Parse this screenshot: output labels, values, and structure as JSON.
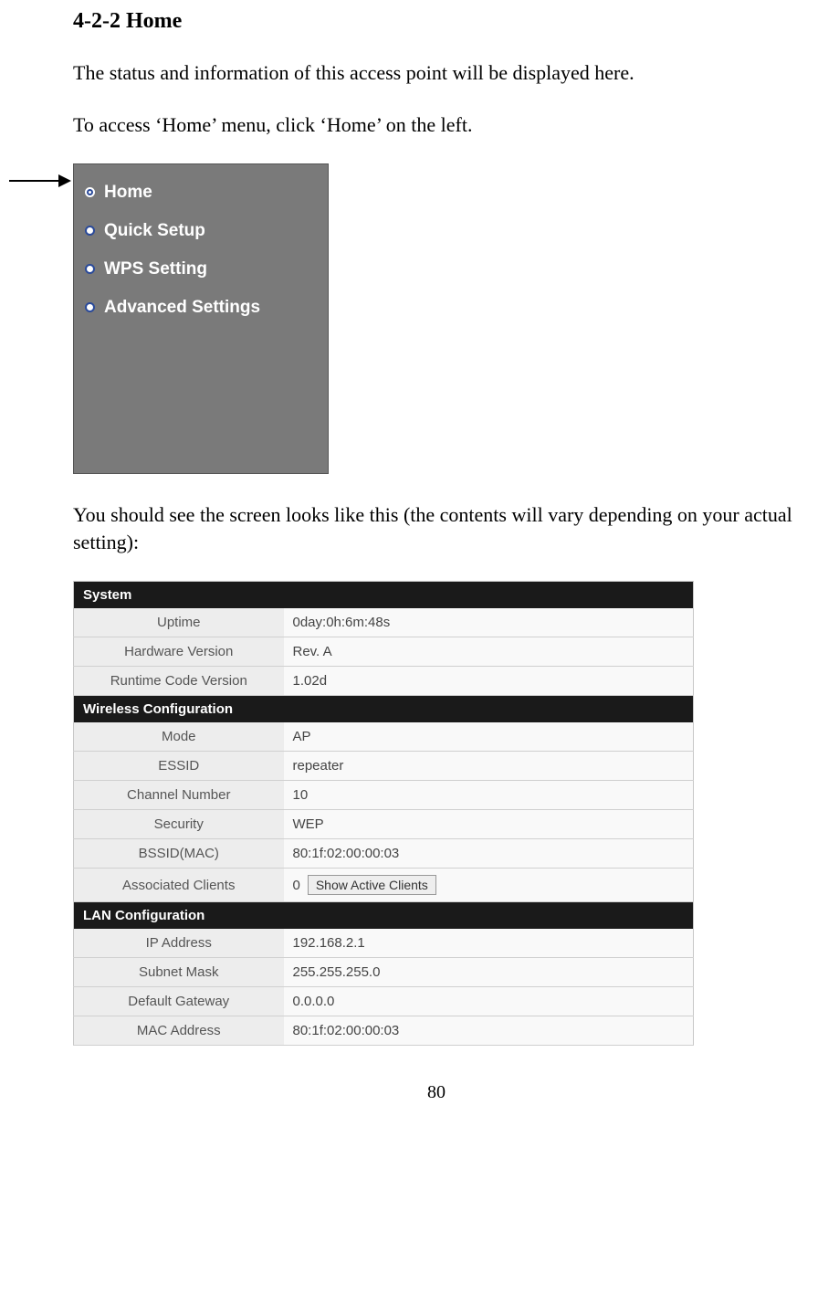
{
  "section_title": "4-2-2 Home",
  "intro_1": "The status and information of this access point will be displayed here.",
  "intro_2": "To access ‘Home’ menu, click ‘Home’ on the left.",
  "menu": {
    "background_color": "#7a7a7a",
    "text_color": "#ffffff",
    "items": [
      {
        "label": "Home",
        "active": true
      },
      {
        "label": "Quick Setup",
        "active": false
      },
      {
        "label": "WPS Setting",
        "active": false
      },
      {
        "label": "Advanced Settings",
        "active": false
      }
    ]
  },
  "intro_3": "You should see the screen looks like this (the contents will vary depending on your actual setting):",
  "status": {
    "header_bg": "#1a1a1a",
    "header_fg": "#ffffff",
    "row_bg": "#f5f5f5",
    "sections": [
      {
        "title": "System",
        "rows": [
          {
            "label": "Uptime",
            "value": "0day:0h:6m:48s"
          },
          {
            "label": "Hardware Version",
            "value": "Rev. A"
          },
          {
            "label": "Runtime Code Version",
            "value": "1.02d"
          }
        ]
      },
      {
        "title": "Wireless Configuration",
        "rows": [
          {
            "label": "Mode",
            "value": "AP"
          },
          {
            "label": "ESSID",
            "value": "repeater"
          },
          {
            "label": "Channel Number",
            "value": "10"
          },
          {
            "label": "Security",
            "value": "WEP"
          },
          {
            "label": "BSSID(MAC)",
            "value": "80:1f:02:00:00:03"
          },
          {
            "label": "Associated Clients",
            "value": "0",
            "button": "Show Active Clients"
          }
        ]
      },
      {
        "title": "LAN Configuration",
        "rows": [
          {
            "label": "IP Address",
            "value": "192.168.2.1"
          },
          {
            "label": "Subnet Mask",
            "value": "255.255.255.0"
          },
          {
            "label": "Default Gateway",
            "value": "0.0.0.0"
          },
          {
            "label": "MAC Address",
            "value": "80:1f:02:00:00:03"
          }
        ]
      }
    ]
  },
  "page_number": "80"
}
